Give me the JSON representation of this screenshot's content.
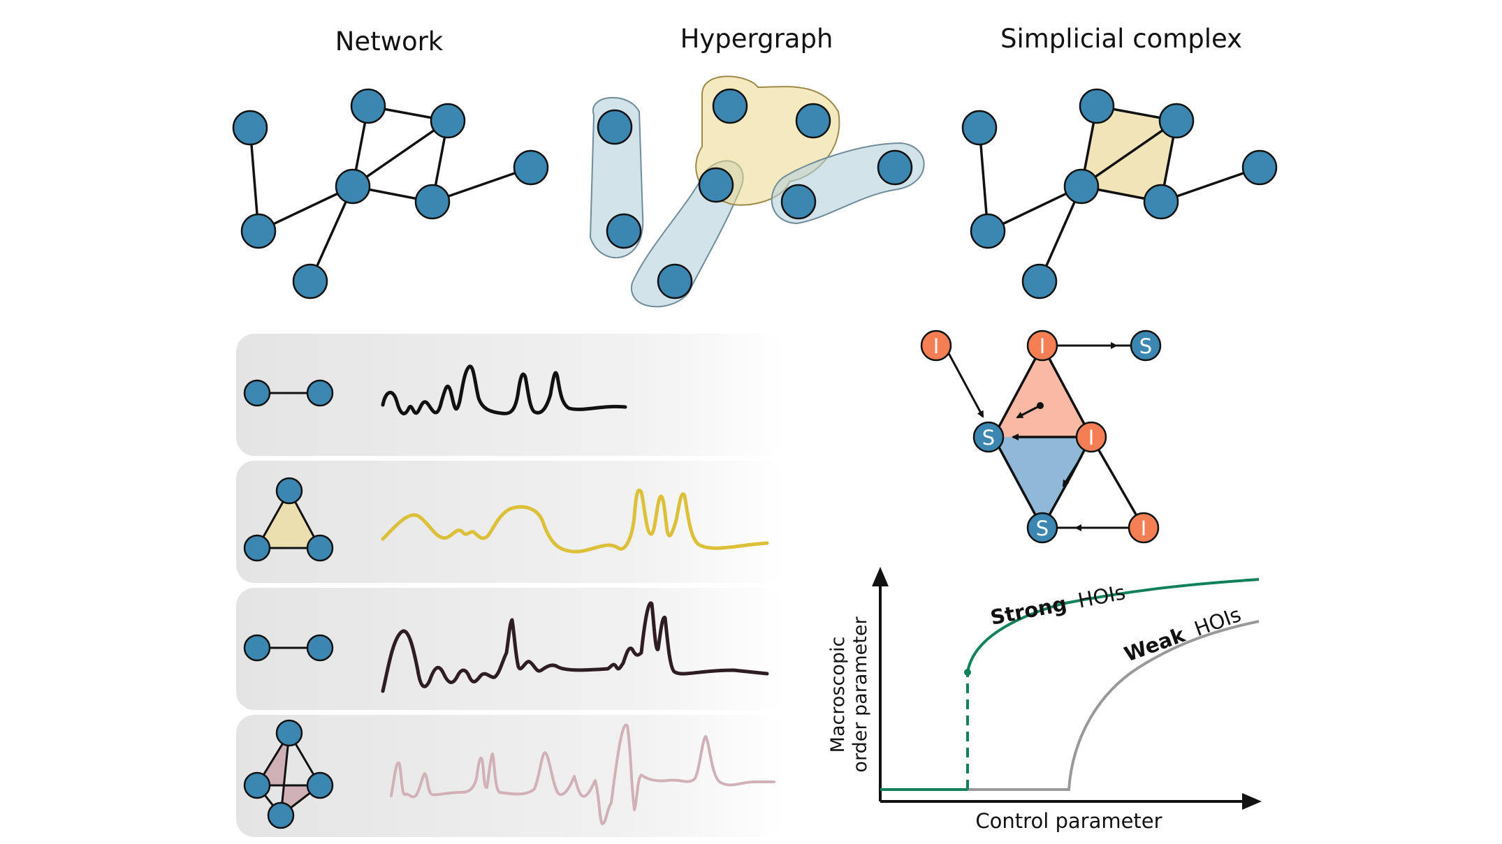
{
  "titles": {
    "network": "Network",
    "hypergraph": "Hypergraph",
    "simplicial": "Simplicial complex"
  },
  "contagion": {
    "infected_label": "I",
    "susceptible_label": "S"
  },
  "transition_plot": {
    "ylabel_line1": "Macroscopic",
    "ylabel_line2": "order parameter",
    "xlabel": "Control parameter",
    "strong_bold": "Strong",
    "strong_rest": "HOIs",
    "weak_bold": "Weak",
    "weak_rest": "HOIs"
  },
  "colors": {
    "node": "#3c86b2",
    "infected": "#f47f55",
    "infected_fill": "#f9b9a4",
    "susceptible_fill": "#8fb9d6",
    "triangle_fill": "#f0e4b8",
    "hyper_blue": "#b5d0dc",
    "hyper_yellow": "#ecd98a",
    "strong_line": "#12805a",
    "weak_line": "#999999",
    "signal_black": "#111111",
    "signal_yellow": "#dcc03a",
    "signal_dark": "#2e1d22",
    "signal_pink": "#d2b0b8",
    "tetra_fill": "#c79ea6"
  }
}
